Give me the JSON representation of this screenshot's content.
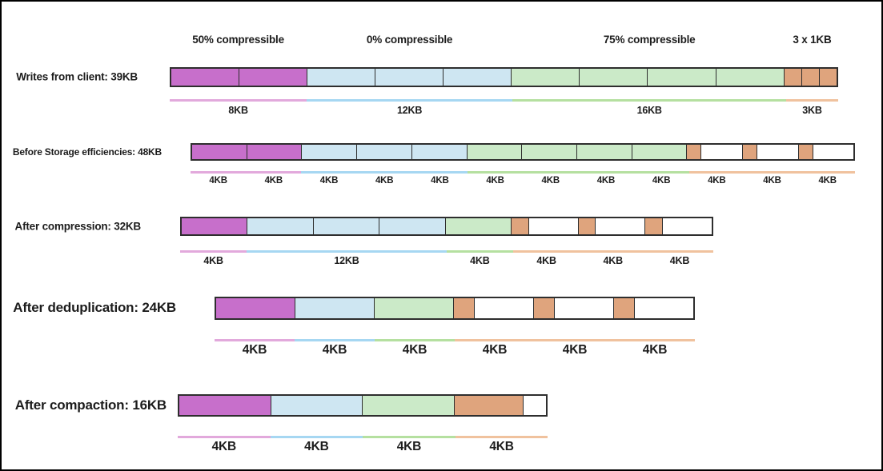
{
  "colors": {
    "magenta": "#C76FCB",
    "blue": "#CEE6F2",
    "green": "#CBEAC8",
    "orange": "#DFA47D",
    "white": "#FFFFFF",
    "underline_magenta": "#E2A9DC",
    "underline_blue": "#A6D7F2",
    "underline_green": "#B5E0A0",
    "underline_orange": "#F0C29E",
    "border": "#2E2E2E"
  },
  "rows": [
    {
      "id": "writes-from-client",
      "label": "Writes from client: 39KB",
      "total_kb": 39,
      "top_labels": [
        {
          "text": "50% compressible",
          "kb": 8
        },
        {
          "text": "0% compressible",
          "kb": 12
        },
        {
          "text": "75% compressible",
          "kb": 16
        },
        {
          "text": "3 x 1KB",
          "kb": 3
        }
      ],
      "segments": [
        {
          "color": "magenta",
          "kb": 4
        },
        {
          "color": "magenta",
          "kb": 4
        },
        {
          "color": "blue",
          "kb": 4
        },
        {
          "color": "blue",
          "kb": 4
        },
        {
          "color": "blue",
          "kb": 4
        },
        {
          "color": "green",
          "kb": 4
        },
        {
          "color": "green",
          "kb": 4
        },
        {
          "color": "green",
          "kb": 4
        },
        {
          "color": "green",
          "kb": 4
        },
        {
          "color": "orange",
          "kb": 1
        },
        {
          "color": "orange",
          "kb": 1
        },
        {
          "color": "orange",
          "kb": 1
        }
      ],
      "underline": [
        {
          "color": "magenta",
          "kb": 8
        },
        {
          "color": "blue",
          "kb": 12
        },
        {
          "color": "green",
          "kb": 16
        },
        {
          "color": "orange",
          "kb": 3
        }
      ],
      "size_labels": [
        {
          "text": "8KB",
          "kb": 8
        },
        {
          "text": "12KB",
          "kb": 12
        },
        {
          "text": "16KB",
          "kb": 16
        },
        {
          "text": "3KB",
          "kb": 3
        }
      ]
    },
    {
      "id": "before-storage-efficiencies",
      "label": "Before Storage efficiencies: 48KB",
      "total_kb": 48,
      "segments": [
        {
          "color": "magenta",
          "kb": 4
        },
        {
          "color": "magenta",
          "kb": 4
        },
        {
          "color": "blue",
          "kb": 4
        },
        {
          "color": "blue",
          "kb": 4
        },
        {
          "color": "blue",
          "kb": 4
        },
        {
          "color": "green",
          "kb": 4
        },
        {
          "color": "green",
          "kb": 4
        },
        {
          "color": "green",
          "kb": 4
        },
        {
          "color": "green",
          "kb": 4
        },
        {
          "color": "orange",
          "kb": 1
        },
        {
          "color": "white",
          "kb": 3
        },
        {
          "color": "orange",
          "kb": 1
        },
        {
          "color": "white",
          "kb": 3
        },
        {
          "color": "orange",
          "kb": 1
        },
        {
          "color": "white",
          "kb": 3
        }
      ],
      "underline": [
        {
          "color": "magenta",
          "kb": 8
        },
        {
          "color": "blue",
          "kb": 12
        },
        {
          "color": "green",
          "kb": 16
        },
        {
          "color": "orange",
          "kb": 12
        }
      ],
      "size_labels": [
        {
          "text": "4KB",
          "kb": 4
        },
        {
          "text": "4KB",
          "kb": 4
        },
        {
          "text": "4KB",
          "kb": 4
        },
        {
          "text": "4KB",
          "kb": 4
        },
        {
          "text": "4KB",
          "kb": 4
        },
        {
          "text": "4KB",
          "kb": 4
        },
        {
          "text": "4KB",
          "kb": 4
        },
        {
          "text": "4KB",
          "kb": 4
        },
        {
          "text": "4KB",
          "kb": 4
        },
        {
          "text": "4KB",
          "kb": 4
        },
        {
          "text": "4KB",
          "kb": 4
        },
        {
          "text": "4KB",
          "kb": 4
        }
      ]
    },
    {
      "id": "after-compression",
      "label": "After compression: 32KB",
      "total_kb": 32,
      "segments": [
        {
          "color": "magenta",
          "kb": 4
        },
        {
          "color": "blue",
          "kb": 4
        },
        {
          "color": "blue",
          "kb": 4
        },
        {
          "color": "blue",
          "kb": 4
        },
        {
          "color": "green",
          "kb": 4
        },
        {
          "color": "orange",
          "kb": 1
        },
        {
          "color": "white",
          "kb": 3
        },
        {
          "color": "orange",
          "kb": 1
        },
        {
          "color": "white",
          "kb": 3
        },
        {
          "color": "orange",
          "kb": 1
        },
        {
          "color": "white",
          "kb": 3
        }
      ],
      "underline": [
        {
          "color": "magenta",
          "kb": 4
        },
        {
          "color": "blue",
          "kb": 12
        },
        {
          "color": "green",
          "kb": 4
        },
        {
          "color": "orange",
          "kb": 12
        }
      ],
      "size_labels": [
        {
          "text": "4KB",
          "kb": 4
        },
        {
          "text": "12KB",
          "kb": 12
        },
        {
          "text": "4KB",
          "kb": 4
        },
        {
          "text": "4KB",
          "kb": 4
        },
        {
          "text": "4KB",
          "kb": 4
        },
        {
          "text": "4KB",
          "kb": 4
        }
      ]
    },
    {
      "id": "after-deduplication",
      "label": "After deduplication: 24KB",
      "total_kb": 24,
      "segments": [
        {
          "color": "magenta",
          "kb": 4
        },
        {
          "color": "blue",
          "kb": 4
        },
        {
          "color": "green",
          "kb": 4
        },
        {
          "color": "orange",
          "kb": 1
        },
        {
          "color": "white",
          "kb": 3
        },
        {
          "color": "orange",
          "kb": 1
        },
        {
          "color": "white",
          "kb": 3
        },
        {
          "color": "orange",
          "kb": 1
        },
        {
          "color": "white",
          "kb": 3
        }
      ],
      "underline": [
        {
          "color": "magenta",
          "kb": 4
        },
        {
          "color": "blue",
          "kb": 4
        },
        {
          "color": "green",
          "kb": 4
        },
        {
          "color": "orange",
          "kb": 12
        }
      ],
      "size_labels": [
        {
          "text": "4KB",
          "kb": 4
        },
        {
          "text": "4KB",
          "kb": 4
        },
        {
          "text": "4KB",
          "kb": 4
        },
        {
          "text": "4KB",
          "kb": 4
        },
        {
          "text": "4KB",
          "kb": 4
        },
        {
          "text": "4KB",
          "kb": 4
        }
      ]
    },
    {
      "id": "after-compaction",
      "label": "After compaction: 16KB",
      "total_kb": 16,
      "segments": [
        {
          "color": "magenta",
          "kb": 4
        },
        {
          "color": "blue",
          "kb": 4
        },
        {
          "color": "green",
          "kb": 4
        },
        {
          "color": "orange",
          "kb": 3
        },
        {
          "color": "white",
          "kb": 1
        }
      ],
      "underline": [
        {
          "color": "magenta",
          "kb": 4
        },
        {
          "color": "blue",
          "kb": 4
        },
        {
          "color": "green",
          "kb": 4
        },
        {
          "color": "orange",
          "kb": 4
        }
      ],
      "size_labels": [
        {
          "text": "4KB",
          "kb": 4
        },
        {
          "text": "4KB",
          "kb": 4
        },
        {
          "text": "4KB",
          "kb": 4
        },
        {
          "text": "4KB",
          "kb": 4
        }
      ]
    }
  ]
}
